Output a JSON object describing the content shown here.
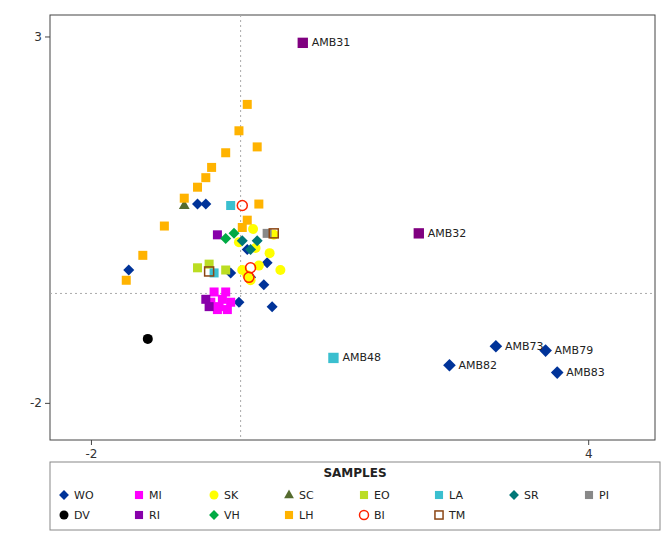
{
  "chart_data": {
    "type": "scatter",
    "xlim": [
      -2.5,
      4.8
    ],
    "ylim": [
      -2.5,
      3.3
    ],
    "xticks": [
      -2,
      4
    ],
    "yticks": [
      3,
      -2
    ],
    "grid": false,
    "legend": "bottom",
    "legend_title": "SAMPLES",
    "reference_lines": [
      {
        "axis": "y",
        "value": -0.5,
        "color": "#aaaaaa",
        "line_style": "dotted"
      },
      {
        "axis": "x",
        "value": -0.2,
        "color": "#aaaaaa",
        "line_style": "dotted"
      }
    ],
    "series": [
      {
        "name": "WO",
        "color": "#003399",
        "marker": "diamond",
        "x": [
          -1.55,
          -0.72,
          -0.62,
          -0.32,
          -0.08,
          0.08,
          -0.12,
          0.12,
          -0.22,
          0.18
        ],
        "values": [
          -0.18,
          0.72,
          0.72,
          -0.22,
          -0.28,
          -0.38,
          0.1,
          -0.08,
          -0.62,
          -0.68
        ]
      },
      {
        "name": "MI",
        "color": "#FF00FF",
        "marker": "square",
        "x": [
          -0.56,
          -0.46,
          -0.36,
          -0.42,
          -0.52,
          -0.38,
          -0.48,
          -0.32
        ],
        "values": [
          -0.62,
          -0.68,
          -0.72,
          -0.58,
          -0.48,
          -0.48,
          -0.72,
          -0.62
        ]
      },
      {
        "name": "SK",
        "color": "#FFFF00",
        "marker": "circle",
        "x": [
          -0.22,
          -0.02,
          0.02,
          -0.18,
          -0.08,
          0.2,
          -0.12,
          0.28,
          0.15,
          -0.05
        ],
        "values": [
          0.2,
          0.12,
          -0.12,
          -0.18,
          -0.32,
          0.3,
          -0.25,
          -0.18,
          0.05,
          0.38
        ]
      },
      {
        "name": "SC",
        "color": "#556B2F",
        "marker": "triangle",
        "x": [
          -0.88
        ],
        "values": [
          0.7
        ]
      },
      {
        "name": "EO",
        "color": "#BBDD22",
        "marker": "square",
        "x": [
          -0.72,
          -0.58,
          -0.38
        ],
        "values": [
          -0.15,
          -0.1,
          -0.18
        ]
      },
      {
        "name": "LA",
        "color": "#3ABFCF",
        "marker": "square",
        "x": [
          -0.52,
          -0.32
        ],
        "values": [
          -0.22,
          0.7
        ]
      },
      {
        "name": "SR",
        "color": "#007777",
        "marker": "diamond",
        "x": [
          -0.18,
          0.0,
          -0.08
        ],
        "values": [
          0.22,
          0.22,
          0.1
        ]
      },
      {
        "name": "PI",
        "color": "#888888",
        "marker": "square",
        "x": [
          0.12
        ],
        "values": [
          0.32
        ]
      },
      {
        "name": "DV",
        "color": "#000000",
        "marker": "circle",
        "x": [
          -1.32
        ],
        "values": [
          -1.12
        ]
      },
      {
        "name": "RI",
        "color": "#8800AA",
        "marker": "square",
        "x": [
          -0.62,
          -0.58,
          -0.48
        ],
        "values": [
          -0.58,
          -0.68,
          0.3
        ]
      },
      {
        "name": "VH",
        "color": "#00AA44",
        "marker": "diamond",
        "x": [
          -0.38,
          -0.28
        ],
        "values": [
          0.25,
          0.32
        ]
      },
      {
        "name": "LH",
        "color": "#FFB300",
        "marker": "square",
        "x": [
          -1.58,
          -1.38,
          -1.12,
          -0.88,
          -0.62,
          -0.38,
          -0.22,
          -0.12,
          0.0,
          0.02,
          -0.12,
          -0.18,
          -0.55,
          -0.72
        ],
        "values": [
          -0.32,
          0.02,
          0.42,
          0.8,
          1.08,
          1.42,
          1.72,
          2.08,
          1.5,
          0.72,
          0.5,
          0.4,
          1.22,
          0.95
        ]
      },
      {
        "name": "BI",
        "color": "#FF2200",
        "marker": "open-circle",
        "x": [
          -0.18,
          -0.1,
          -0.08
        ],
        "values": [
          0.7,
          -0.28,
          -0.15
        ]
      },
      {
        "name": "TM",
        "color": "#8B4513",
        "marker": "open-square",
        "x": [
          -0.58,
          0.2
        ],
        "values": [
          -0.2,
          0.32
        ]
      }
    ],
    "labeled_points": [
      {
        "label": "AMB31",
        "x": 0.55,
        "y": 2.92,
        "color": "#800080",
        "marker": "square"
      },
      {
        "label": "AMB32",
        "x": 1.95,
        "y": 0.32,
        "color": "#800080",
        "marker": "square"
      },
      {
        "label": "AMB48",
        "x": 0.92,
        "y": -1.38,
        "color": "#3ABFCF",
        "marker": "square"
      },
      {
        "label": "AMB73",
        "x": 2.88,
        "y": -1.22,
        "color": "#003399",
        "marker": "diamond"
      },
      {
        "label": "AMB79",
        "x": 3.48,
        "y": -1.28,
        "color": "#003399",
        "marker": "diamond"
      },
      {
        "label": "AMB82",
        "x": 2.32,
        "y": -1.48,
        "color": "#003399",
        "marker": "diamond"
      },
      {
        "label": "AMB83",
        "x": 3.62,
        "y": -1.58,
        "color": "#003399",
        "marker": "diamond"
      }
    ]
  }
}
